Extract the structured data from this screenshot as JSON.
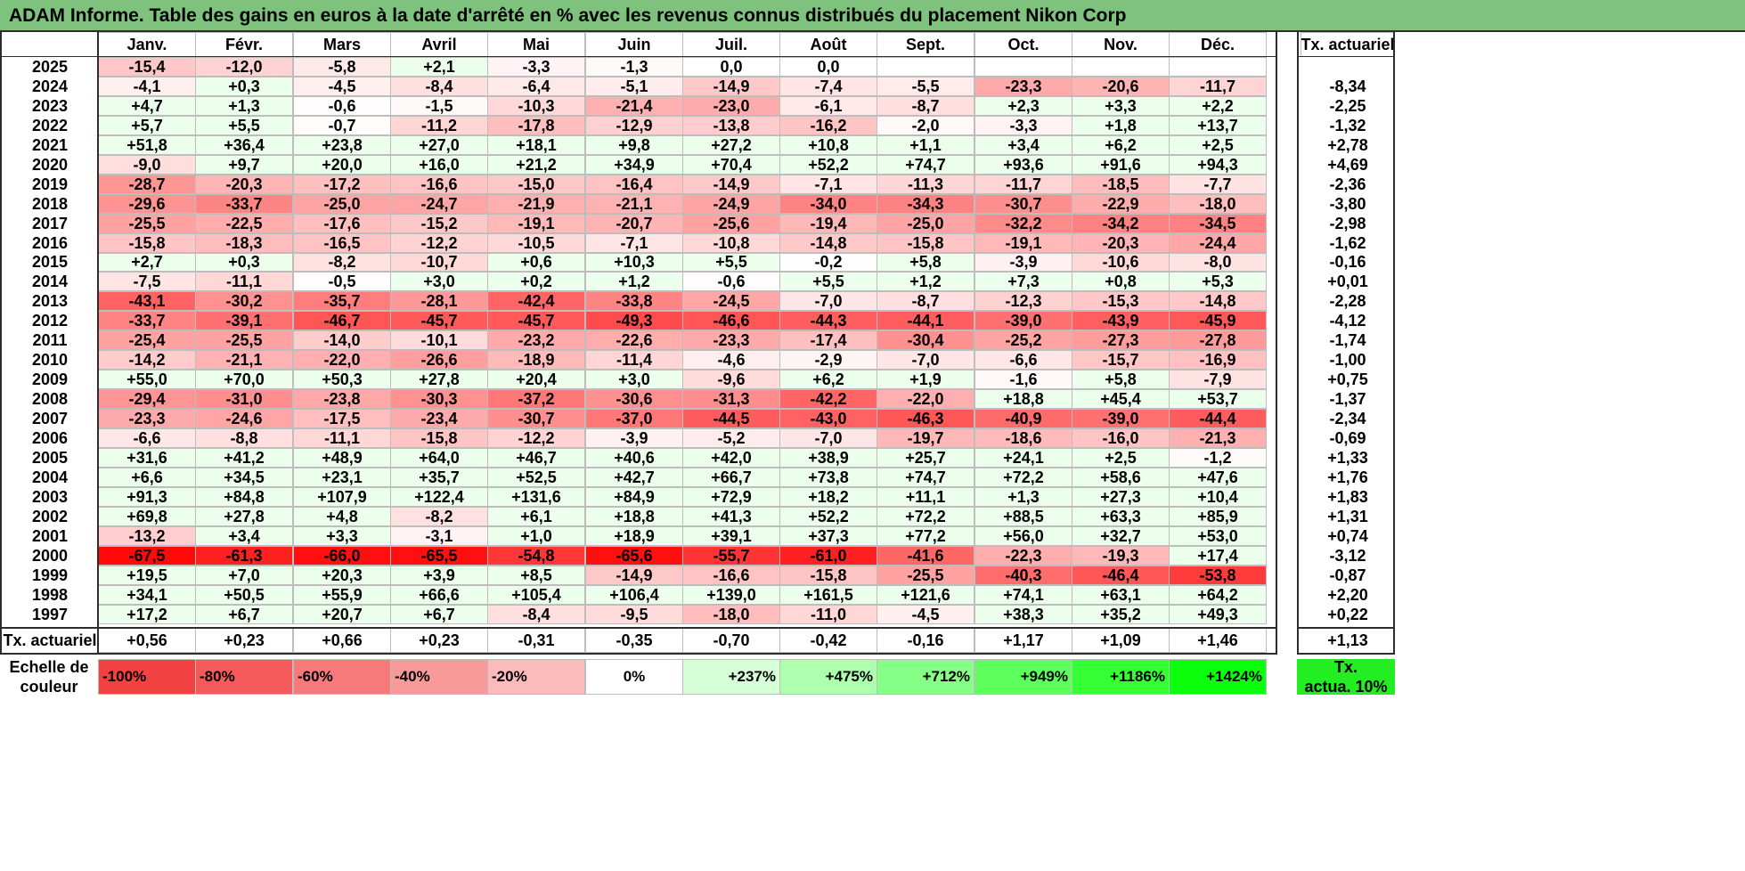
{
  "title": "ADAM Informe. Table des gains en euros à la date d'arrêté en % avec les revenus connus distribués du placement Nikon Corp",
  "months": [
    "Janv.",
    "Févr.",
    "Mars",
    "Avril",
    "Mai",
    "Juin",
    "Juil.",
    "Août",
    "Sept.",
    "Oct.",
    "Nov.",
    "Déc."
  ],
  "rate_header": "Tx. actuariel",
  "rows": [
    {
      "year": "2025",
      "values": [
        "-15,4",
        "-12,0",
        "-5,8",
        "+2,1",
        "-3,3",
        "-1,3",
        "0,0",
        "0,0",
        "",
        "",
        "",
        ""
      ],
      "rate": ""
    },
    {
      "year": "2024",
      "values": [
        "-4,1",
        "+0,3",
        "-4,5",
        "-8,4",
        "-6,4",
        "-5,1",
        "-14,9",
        "-7,4",
        "-5,5",
        "-23,3",
        "-20,6",
        "-11,7"
      ],
      "rate": "-8,34"
    },
    {
      "year": "2023",
      "values": [
        "+4,7",
        "+1,3",
        "-0,6",
        "-1,5",
        "-10,3",
        "-21,4",
        "-23,0",
        "-6,1",
        "-8,7",
        "+2,3",
        "+3,3",
        "+2,2"
      ],
      "rate": "-2,25"
    },
    {
      "year": "2022",
      "values": [
        "+5,7",
        "+5,5",
        "-0,7",
        "-11,2",
        "-17,8",
        "-12,9",
        "-13,8",
        "-16,2",
        "-2,0",
        "-3,3",
        "+1,8",
        "+13,7"
      ],
      "rate": "-1,32"
    },
    {
      "year": "2021",
      "values": [
        "+51,8",
        "+36,4",
        "+23,8",
        "+27,0",
        "+18,1",
        "+9,8",
        "+27,2",
        "+10,8",
        "+1,1",
        "+3,4",
        "+6,2",
        "+2,5"
      ],
      "rate": "+2,78"
    },
    {
      "year": "2020",
      "values": [
        "-9,0",
        "+9,7",
        "+20,0",
        "+16,0",
        "+21,2",
        "+34,9",
        "+70,4",
        "+52,2",
        "+74,7",
        "+93,6",
        "+91,6",
        "+94,3"
      ],
      "rate": "+4,69"
    },
    {
      "year": "2019",
      "values": [
        "-28,7",
        "-20,3",
        "-17,2",
        "-16,6",
        "-15,0",
        "-16,4",
        "-14,9",
        "-7,1",
        "-11,3",
        "-11,7",
        "-18,5",
        "-7,7"
      ],
      "rate": "-2,36"
    },
    {
      "year": "2018",
      "values": [
        "-29,6",
        "-33,7",
        "-25,0",
        "-24,7",
        "-21,9",
        "-21,1",
        "-24,9",
        "-34,0",
        "-34,3",
        "-30,7",
        "-22,9",
        "-18,0"
      ],
      "rate": "-3,80"
    },
    {
      "year": "2017",
      "values": [
        "-25,5",
        "-22,5",
        "-17,6",
        "-15,2",
        "-19,1",
        "-20,7",
        "-25,6",
        "-19,4",
        "-25,0",
        "-32,2",
        "-34,2",
        "-34,5"
      ],
      "rate": "-2,98"
    },
    {
      "year": "2016",
      "values": [
        "-15,8",
        "-18,3",
        "-16,5",
        "-12,2",
        "-10,5",
        "-7,1",
        "-10,8",
        "-14,8",
        "-15,8",
        "-19,1",
        "-20,3",
        "-24,4"
      ],
      "rate": "-1,62"
    },
    {
      "year": "2015",
      "values": [
        "+2,7",
        "+0,3",
        "-8,2",
        "-10,7",
        "+0,6",
        "+10,3",
        "+5,5",
        "-0,2",
        "+5,8",
        "-3,9",
        "-10,6",
        "-8,0"
      ],
      "rate": "-0,16"
    },
    {
      "year": "2014",
      "values": [
        "-7,5",
        "-11,1",
        "-0,5",
        "+3,0",
        "+0,2",
        "+1,2",
        "-0,6",
        "+5,5",
        "+1,2",
        "+7,3",
        "+0,8",
        "+5,3"
      ],
      "rate": "+0,01"
    },
    {
      "year": "2013",
      "values": [
        "-43,1",
        "-30,2",
        "-35,7",
        "-28,1",
        "-42,4",
        "-33,8",
        "-24,5",
        "-7,0",
        "-8,7",
        "-12,3",
        "-15,3",
        "-14,8"
      ],
      "rate": "-2,28"
    },
    {
      "year": "2012",
      "values": [
        "-33,7",
        "-39,1",
        "-46,7",
        "-45,7",
        "-45,7",
        "-49,3",
        "-46,6",
        "-44,3",
        "-44,1",
        "-39,0",
        "-43,9",
        "-45,9"
      ],
      "rate": "-4,12"
    },
    {
      "year": "2011",
      "values": [
        "-25,4",
        "-25,5",
        "-14,0",
        "-10,1",
        "-23,2",
        "-22,6",
        "-23,3",
        "-17,4",
        "-30,4",
        "-25,2",
        "-27,3",
        "-27,8"
      ],
      "rate": "-1,74"
    },
    {
      "year": "2010",
      "values": [
        "-14,2",
        "-21,1",
        "-22,0",
        "-26,6",
        "-18,9",
        "-11,4",
        "-4,6",
        "-2,9",
        "-7,0",
        "-6,6",
        "-15,7",
        "-16,9"
      ],
      "rate": "-1,00"
    },
    {
      "year": "2009",
      "values": [
        "+55,0",
        "+70,0",
        "+50,3",
        "+27,8",
        "+20,4",
        "+3,0",
        "-9,6",
        "+6,2",
        "+1,9",
        "-1,6",
        "+5,8",
        "-7,9"
      ],
      "rate": "+0,75"
    },
    {
      "year": "2008",
      "values": [
        "-29,4",
        "-31,0",
        "-23,8",
        "-30,3",
        "-37,2",
        "-30,6",
        "-31,3",
        "-42,2",
        "-22,0",
        "+18,8",
        "+45,4",
        "+53,7"
      ],
      "rate": "-1,37"
    },
    {
      "year": "2007",
      "values": [
        "-23,3",
        "-24,6",
        "-17,5",
        "-23,4",
        "-30,7",
        "-37,0",
        "-44,5",
        "-43,0",
        "-46,3",
        "-40,9",
        "-39,0",
        "-44,4"
      ],
      "rate": "-2,34"
    },
    {
      "year": "2006",
      "values": [
        "-6,6",
        "-8,8",
        "-11,1",
        "-15,8",
        "-12,2",
        "-3,9",
        "-5,2",
        "-7,0",
        "-19,7",
        "-18,6",
        "-16,0",
        "-21,3"
      ],
      "rate": "-0,69"
    },
    {
      "year": "2005",
      "values": [
        "+31,6",
        "+41,2",
        "+48,9",
        "+64,0",
        "+46,7",
        "+40,6",
        "+42,0",
        "+38,9",
        "+25,7",
        "+24,1",
        "+2,5",
        "-1,2"
      ],
      "rate": "+1,33"
    },
    {
      "year": "2004",
      "values": [
        "+6,6",
        "+34,5",
        "+23,1",
        "+35,7",
        "+52,5",
        "+42,7",
        "+66,7",
        "+73,8",
        "+74,7",
        "+72,2",
        "+58,6",
        "+47,6"
      ],
      "rate": "+1,76"
    },
    {
      "year": "2003",
      "values": [
        "+91,3",
        "+84,8",
        "+107,9",
        "+122,4",
        "+131,6",
        "+84,9",
        "+72,9",
        "+18,2",
        "+11,1",
        "+1,3",
        "+27,3",
        "+10,4"
      ],
      "rate": "+1,83"
    },
    {
      "year": "2002",
      "values": [
        "+69,8",
        "+27,8",
        "+4,8",
        "-8,2",
        "+6,1",
        "+18,8",
        "+41,3",
        "+52,2",
        "+72,2",
        "+88,5",
        "+63,3",
        "+85,9"
      ],
      "rate": "+1,31"
    },
    {
      "year": "2001",
      "values": [
        "-13,2",
        "+3,4",
        "+3,3",
        "-3,1",
        "+1,0",
        "+18,9",
        "+39,1",
        "+37,3",
        "+77,2",
        "+56,0",
        "+32,7",
        "+53,0"
      ],
      "rate": "+0,74"
    },
    {
      "year": "2000",
      "values": [
        "-67,5",
        "-61,3",
        "-66,0",
        "-65,5",
        "-54,8",
        "-65,6",
        "-55,7",
        "-61,0",
        "-41,6",
        "-22,3",
        "-19,3",
        "+17,4"
      ],
      "rate": "-3,12"
    },
    {
      "year": "1999",
      "values": [
        "+19,5",
        "+7,0",
        "+20,3",
        "+3,9",
        "+8,5",
        "-14,9",
        "-16,6",
        "-15,8",
        "-25,5",
        "-40,3",
        "-46,4",
        "-53,8"
      ],
      "rate": "-0,87"
    },
    {
      "year": "1998",
      "values": [
        "+34,1",
        "+50,5",
        "+55,9",
        "+66,6",
        "+105,4",
        "+106,4",
        "+139,0",
        "+161,5",
        "+121,6",
        "+74,1",
        "+63,1",
        "+64,2"
      ],
      "rate": "+2,20"
    },
    {
      "year": "1997",
      "values": [
        "+17,2",
        "+6,7",
        "+20,7",
        "+6,7",
        "-8,4",
        "-9,5",
        "-18,0",
        "-11,0",
        "-4,5",
        "+38,3",
        "+35,2",
        "+49,3"
      ],
      "rate": "+0,22"
    }
  ],
  "summary": {
    "label": "Tx. actuariel",
    "values": [
      "+0,56",
      "+0,23",
      "+0,66",
      "+0,23",
      "-0,31",
      "-0,35",
      "-0,70",
      "-0,42",
      "-0,16",
      "+1,17",
      "+1,09",
      "+1,46"
    ],
    "rate": "+1,13"
  },
  "scale": {
    "label_lines": [
      "Echelle de",
      "couleur"
    ],
    "items": [
      {
        "text": "-100%",
        "color": "#f24141",
        "align": "left"
      },
      {
        "text": "-80%",
        "color": "#f45a5a",
        "align": "left"
      },
      {
        "text": "-60%",
        "color": "#f67a7a",
        "align": "left"
      },
      {
        "text": "-40%",
        "color": "#f89a9a",
        "align": "left"
      },
      {
        "text": "-20%",
        "color": "#fbbbbb",
        "align": "left"
      },
      {
        "text": "0%",
        "color": "#ffffff",
        "align": "center"
      },
      {
        "text": "+237%",
        "color": "#d7ffd7",
        "align": "right"
      },
      {
        "text": "+475%",
        "color": "#aeffae",
        "align": "right"
      },
      {
        "text": "+712%",
        "color": "#86ff86",
        "align": "right"
      },
      {
        "text": "+949%",
        "color": "#5dff5d",
        "align": "right"
      },
      {
        "text": "+1186%",
        "color": "#35ff35",
        "align": "right"
      },
      {
        "text": "+1424%",
        "color": "#0cff0c",
        "align": "right"
      }
    ],
    "rate_label_lines": [
      "Tx.",
      "actua. 10%"
    ],
    "rate_color": "#22ee22"
  },
  "colors": {
    "title_bg": "#7ec27e",
    "negative_max": "#ff0000",
    "positive_tint": "#ecffec"
  }
}
